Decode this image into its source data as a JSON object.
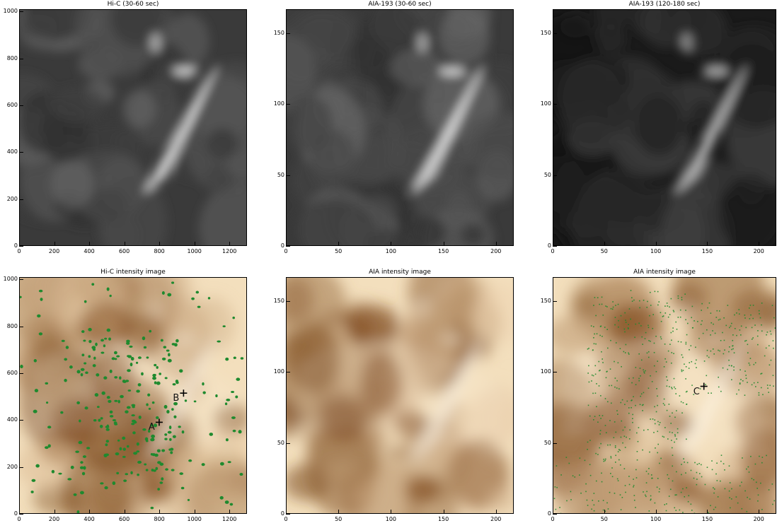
{
  "panels": [
    {
      "title": "Hi-C (30-60 sec)",
      "style": "gray",
      "xticks": [
        "0",
        "200",
        "400",
        "600",
        "800",
        "1000",
        "1200"
      ],
      "xtick_values": [
        0,
        200,
        400,
        600,
        800,
        1000,
        1200
      ],
      "xmax": 1300,
      "yticks": [
        "0",
        "200",
        "400",
        "600",
        "800",
        "1000"
      ],
      "ytick_values": [
        0,
        200,
        400,
        600,
        800,
        1000
      ],
      "ymax": 1010
    },
    {
      "title": "AIA-193 (30-60 sec)",
      "style": "gray",
      "xticks": [
        "0",
        "50",
        "100",
        "150",
        "200"
      ],
      "xtick_values": [
        0,
        50,
        100,
        150,
        200
      ],
      "xmax": 217,
      "yticks": [
        "0",
        "50",
        "100",
        "150"
      ],
      "ytick_values": [
        0,
        50,
        100,
        150
      ],
      "ymax": 167
    },
    {
      "title": "AIA-193 (120-180 sec)",
      "style": "gray-dark",
      "xticks": [
        "0",
        "50",
        "100",
        "150",
        "200"
      ],
      "xtick_values": [
        0,
        50,
        100,
        150,
        200
      ],
      "xmax": 217,
      "yticks": [
        "0",
        "50",
        "100",
        "150"
      ],
      "ytick_values": [
        0,
        50,
        100,
        150
      ],
      "ymax": 167
    },
    {
      "title": "Hi-C intensity image",
      "style": "sepia-dots",
      "xticks": [
        "0",
        "200",
        "400",
        "600",
        "800",
        "1000",
        "1200"
      ],
      "xtick_values": [
        0,
        200,
        400,
        600,
        800,
        1000,
        1200
      ],
      "xmax": 1300,
      "yticks": [
        "0",
        "200",
        "400",
        "600",
        "800",
        "1000"
      ],
      "ytick_values": [
        0,
        200,
        400,
        600,
        800,
        1000
      ],
      "ymax": 1010,
      "markers": [
        {
          "label": "A",
          "x": 800,
          "y": 390
        },
        {
          "label": "B",
          "x": 940,
          "y": 515
        }
      ]
    },
    {
      "title": "AIA intensity image",
      "style": "sepia",
      "xticks": [
        "0",
        "50",
        "100",
        "150",
        "200"
      ],
      "xtick_values": [
        0,
        50,
        100,
        150,
        200
      ],
      "xmax": 217,
      "yticks": [
        "0",
        "50",
        "100",
        "150"
      ],
      "ytick_values": [
        0,
        50,
        100,
        150
      ],
      "ymax": 167
    },
    {
      "title": "AIA intensity image",
      "style": "sepia-specks",
      "xticks": [
        "0",
        "50",
        "100",
        "150",
        "200"
      ],
      "xtick_values": [
        0,
        50,
        100,
        150,
        200
      ],
      "xmax": 217,
      "yticks": [
        "0",
        "50",
        "100",
        "150"
      ],
      "ytick_values": [
        0,
        50,
        100,
        150
      ],
      "ymax": 167,
      "markers": [
        {
          "label": "C",
          "x": 147,
          "y": 90
        }
      ]
    }
  ],
  "colors": {
    "dots": "#1f8a2e",
    "sepia_light": "#f6e7cc",
    "sepia_dark": "#6b3a12"
  }
}
